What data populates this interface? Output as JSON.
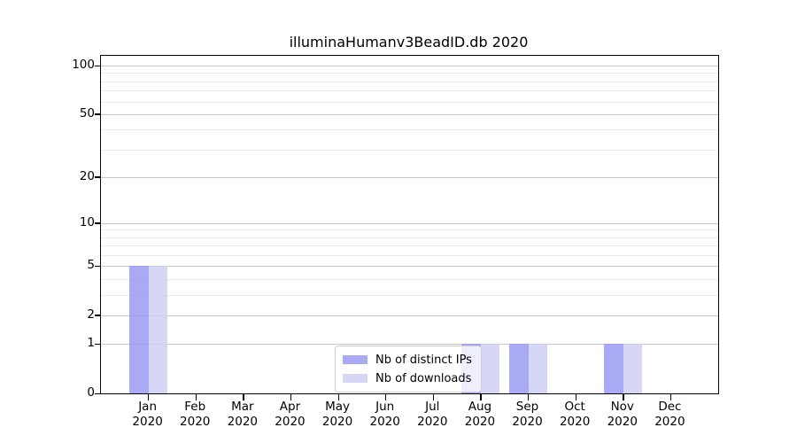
{
  "chart_data": {
    "type": "bar",
    "title": "illuminaHumanv3BeadID.db 2020",
    "xlabel": "",
    "ylabel": "",
    "months": [
      "Jan",
      "Feb",
      "Mar",
      "Apr",
      "May",
      "Jun",
      "Jul",
      "Aug",
      "Sep",
      "Oct",
      "Nov",
      "Dec"
    ],
    "year_label": "2020",
    "series": [
      {
        "name": "Nb of distinct IPs",
        "color": "rgba(150,150,242,0.82)",
        "values": [
          5,
          0,
          0,
          0,
          0,
          0,
          0,
          1,
          1,
          0,
          1,
          0
        ]
      },
      {
        "name": "Nb of downloads",
        "color": "rgba(205,205,245,0.82)",
        "values": [
          5,
          0,
          0,
          0,
          0,
          0,
          0,
          1,
          1,
          0,
          1,
          0
        ]
      }
    ],
    "y_scale": "log1p",
    "ylim": [
      0,
      115
    ],
    "y_major_ticks": [
      0,
      1,
      2,
      5,
      10,
      20,
      50,
      100
    ],
    "y_minor_ticks": [
      3,
      4,
      6,
      7,
      8,
      9,
      30,
      40,
      60,
      70,
      80,
      90
    ],
    "grid": true,
    "legend_position": "lower center"
  },
  "style": {
    "grid_major_color": "#c9c9c9",
    "grid_minor_color": "#ebebeb",
    "spine_color": "#000000",
    "background": "#ffffff"
  }
}
